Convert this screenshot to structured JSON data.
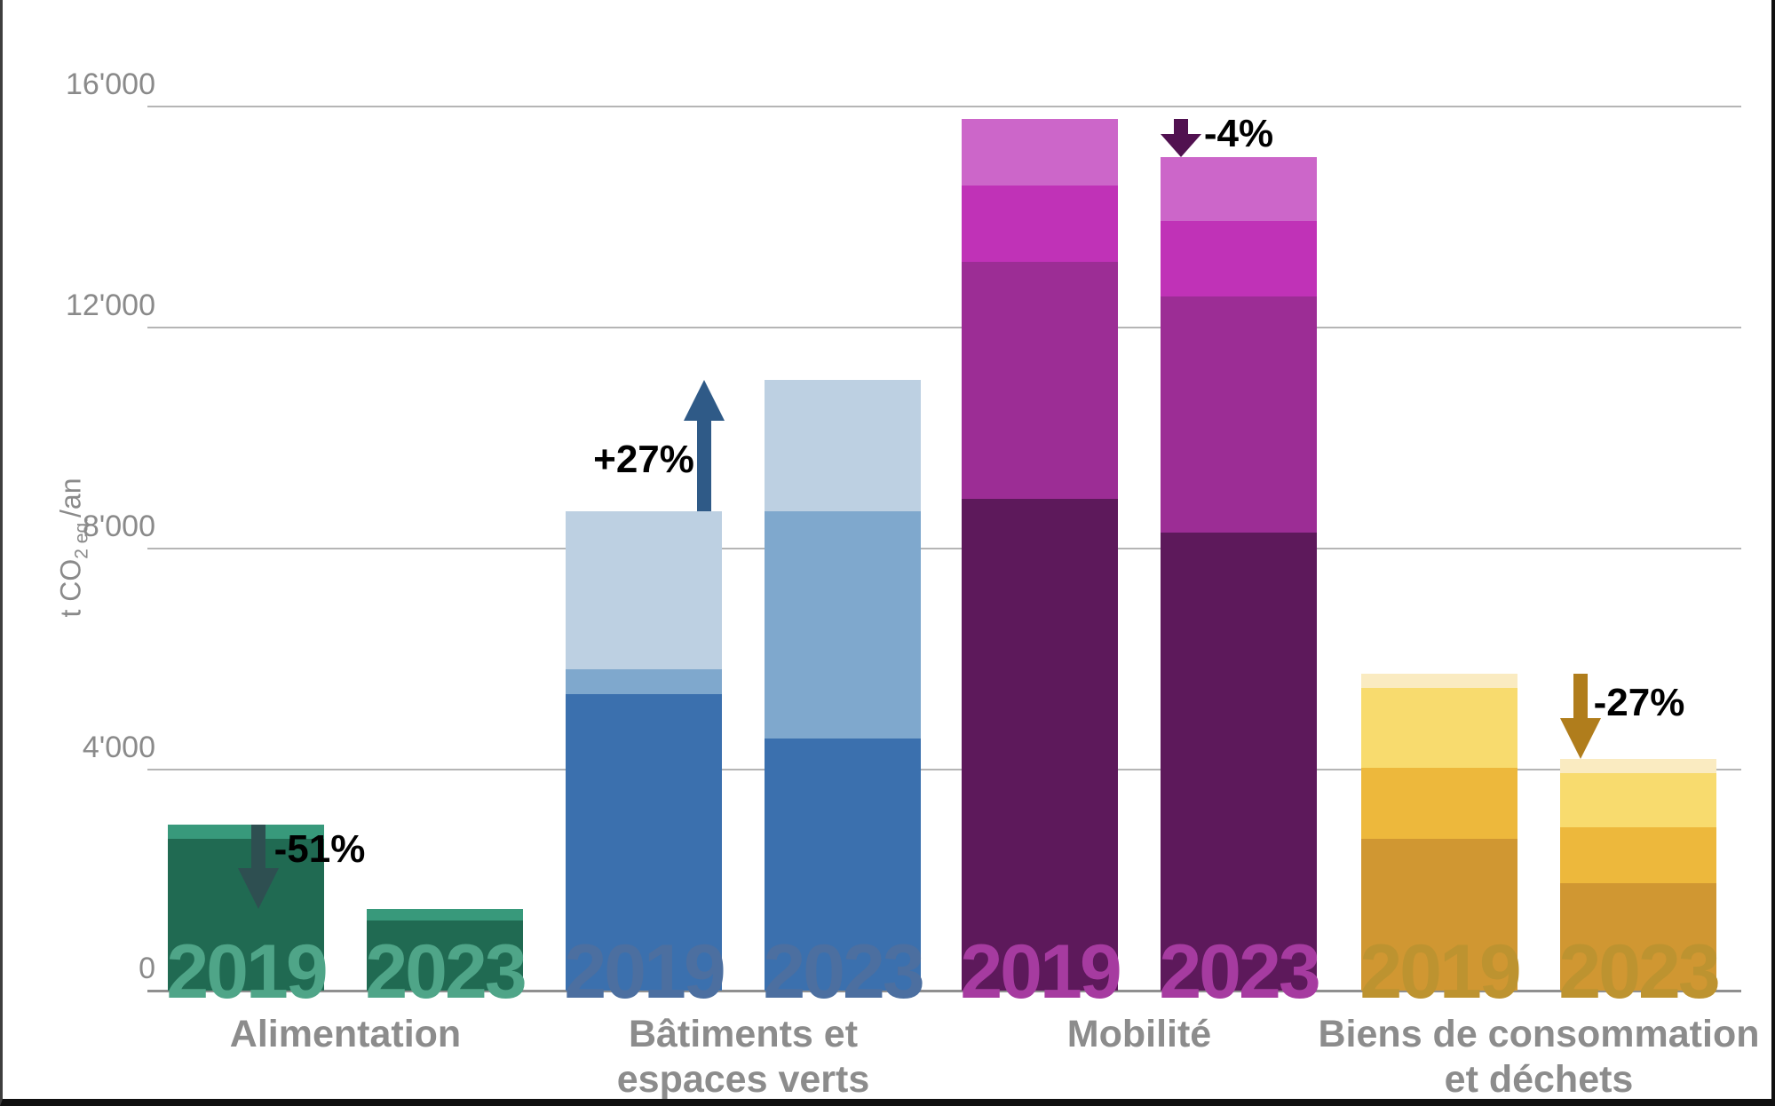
{
  "axis": {
    "title_pre": "t CO",
    "title_sub": "2 eq.",
    "title_post": "/an"
  },
  "chart_data": {
    "type": "bar",
    "stacked": true,
    "title": "",
    "ylabel": "t CO2 eq./an",
    "xlabel": "",
    "ylim": [
      0,
      16000
    ],
    "grid": true,
    "years": [
      "2019",
      "2023"
    ],
    "y_ticks": [
      {
        "value": 0,
        "label": "0"
      },
      {
        "value": 4000,
        "label": "4'000"
      },
      {
        "value": 8000,
        "label": "8'000"
      },
      {
        "value": 12000,
        "label": "12'000"
      },
      {
        "value": 16000,
        "label": "16'000"
      }
    ],
    "categories": [
      "Alimentation",
      "Bâtiments et espaces verts",
      "Mobilité",
      "Biens de consommation et déchets"
    ],
    "category_lines": [
      [
        "Alimentation"
      ],
      [
        "Bâtiments et",
        "espaces verts"
      ],
      [
        "Mobilité"
      ],
      [
        "Biens de consommation",
        "et déchets"
      ]
    ],
    "groups": [
      {
        "category": "Alimentation",
        "change_label": "-51%",
        "trend": "down",
        "segment_colors": [
          "#206A52",
          "#38997B"
        ],
        "year_label_color": "#4FA588",
        "arrow_color": "#2E4F51",
        "bars": {
          "2019": {
            "total": 3000,
            "segments": [
              2750,
              250
            ]
          },
          "2023": {
            "total": 1470,
            "segments": [
              1270,
              200
            ]
          }
        }
      },
      {
        "category": "Bâtiments et espaces verts",
        "change_label": "+27%",
        "trend": "up",
        "segment_colors": [
          "#3B70AE",
          "#7FA8CD",
          "#BDD0E2"
        ],
        "year_label_color": "#4C6FA0",
        "arrow_color": "#2F5A87",
        "bars": {
          "2019": {
            "total": 8680,
            "segments": [
              5370,
              440,
              2870
            ]
          },
          "2023": {
            "total": 11060,
            "segments": [
              4570,
              4110,
              2380
            ]
          }
        }
      },
      {
        "category": "Mobilité",
        "change_label": "-4%",
        "trend": "down",
        "segment_colors": [
          "#5D195B",
          "#9C2D95",
          "#C032B7",
          "#CC66C9"
        ],
        "year_label_color": "#A63BA0",
        "arrow_color": "#511150",
        "bars": {
          "2019": {
            "total": 15780,
            "segments": [
              8900,
              4290,
              1380,
              1210
            ]
          },
          "2023": {
            "total": 15090,
            "segments": [
              8290,
              4280,
              1360,
              1160
            ]
          }
        }
      },
      {
        "category": "Biens de consommation et déchets",
        "change_label": "-27%",
        "trend": "down",
        "segment_colors": [
          "#D09732",
          "#EDB83C",
          "#F8DB6E",
          "#FAEBC1"
        ],
        "year_label_color": "#BD9330",
        "arrow_color": "#B07D1C",
        "bars": {
          "2019": {
            "total": 5730,
            "segments": [
              2740,
              1300,
              1430,
              260
            ]
          },
          "2023": {
            "total": 4200,
            "segments": [
              1950,
              1010,
              970,
              270
            ]
          }
        }
      }
    ]
  },
  "colors": {
    "axis_text": "#8a8a8a",
    "category_text": "#8c8c8c",
    "gridline": "#b5b5b5",
    "baseline": "#8f8f8f",
    "percent_text": "#000000"
  }
}
